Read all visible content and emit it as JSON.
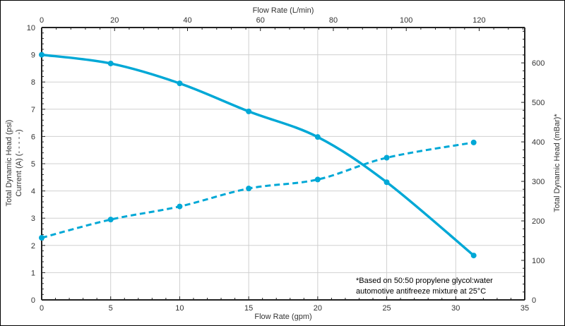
{
  "chart_data": {
    "type": "line",
    "xlabel": "Flow Rate (gpm)",
    "x2label": "Flow Rate (L/min)",
    "ylabel": "Total Dynamic Head (psi)",
    "ylabel2": "Current (A) (- - - - -)",
    "y2label": "Total Dynamic Head (mBar)*",
    "xlim": [
      0,
      35
    ],
    "ylim": [
      0,
      10
    ],
    "x2lim": [
      0,
      132.5
    ],
    "y2lim": [
      0,
      689.5
    ],
    "xticks": [
      0,
      5,
      10,
      15,
      20,
      25,
      30,
      35
    ],
    "yticks": [
      0,
      1,
      2,
      3,
      4,
      5,
      6,
      7,
      8,
      9,
      10
    ],
    "x2ticks": [
      0,
      20,
      40,
      60,
      80,
      100,
      120
    ],
    "y2ticks": [
      0,
      100,
      200,
      300,
      400,
      500,
      600
    ],
    "grid": true,
    "color": "#00a8d6",
    "series": [
      {
        "style": "solid",
        "x": [
          0,
          5,
          10,
          15,
          20,
          25,
          31.3
        ],
        "y": [
          9.0,
          8.68,
          7.95,
          6.92,
          5.98,
          4.32,
          1.63
        ]
      },
      {
        "style": "dashed",
        "x": [
          0,
          5,
          10,
          15,
          20,
          25,
          31.3
        ],
        "y": [
          2.28,
          2.95,
          3.43,
          4.09,
          4.42,
          5.22,
          5.78
        ]
      }
    ],
    "annotation": [
      "*Based on 50:50 propylene glycol:water",
      "automotive antifreeze mixture at 25°C"
    ]
  }
}
